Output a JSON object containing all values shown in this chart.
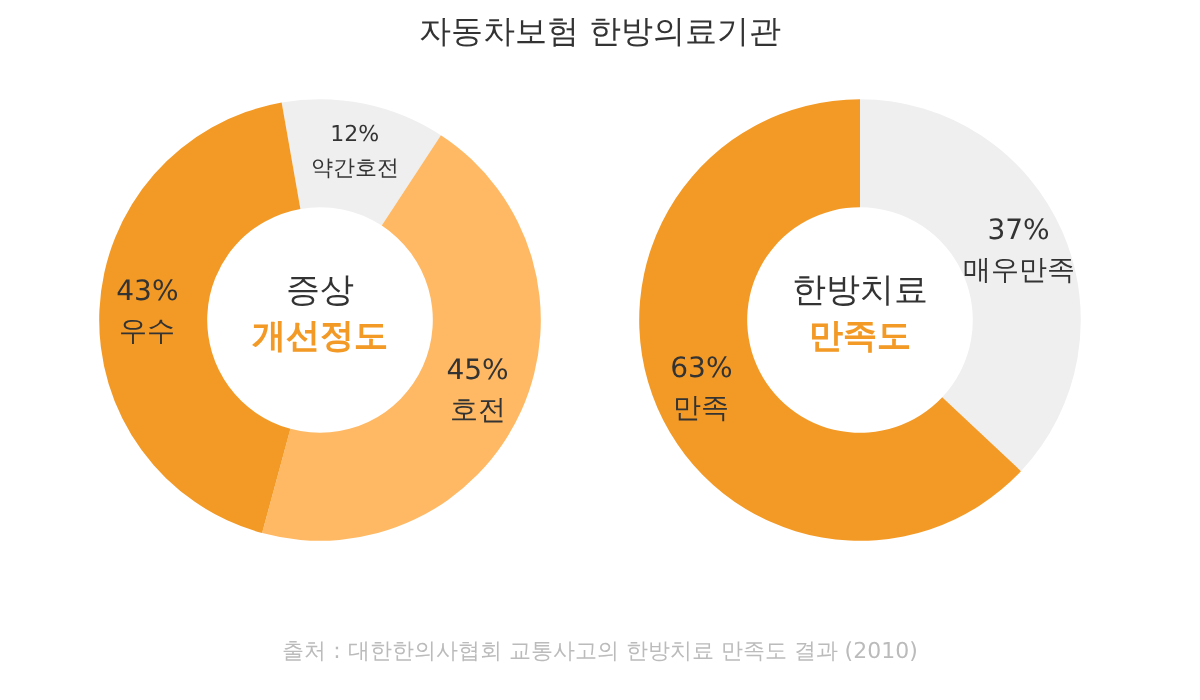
{
  "chart_data": [
    {
      "type": "donut",
      "title": "증상",
      "subtitle": "개선정도",
      "categories": [
        "약간호전",
        "호전",
        "우수"
      ],
      "values": [
        12,
        45,
        43
      ],
      "colors": [
        "#efefef",
        "#ffb964",
        "#f39a26"
      ],
      "value_labels": [
        "12%",
        "45%",
        "43%"
      ],
      "annotations": [
        "자동차보험 한방의료기관",
        "출처 : 대한한의사협회 교통사고의 한방치료 만족도 결과 (2010)"
      ]
    },
    {
      "type": "donut",
      "title": "한방치료",
      "subtitle": "만족도",
      "categories": [
        "매우만족",
        "만족"
      ],
      "values": [
        37,
        63
      ],
      "colors": [
        "#efefef",
        "#f39a26"
      ],
      "value_labels": [
        "37%",
        "63%"
      ]
    }
  ]
}
